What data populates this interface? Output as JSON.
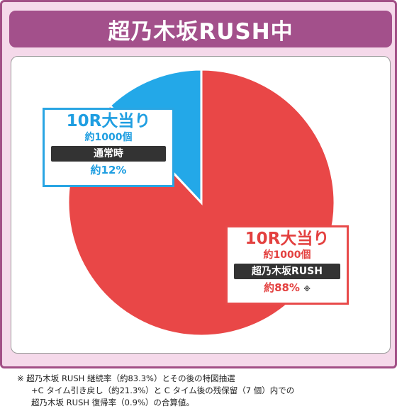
{
  "header": {
    "title": "超乃木坂RUSH中"
  },
  "chart_data": {
    "type": "pie",
    "title": "超乃木坂RUSH中",
    "slices": [
      {
        "title": "10R大当り",
        "count": "約1000個",
        "mode": "超乃木坂RUSH",
        "percent_label": "約88%",
        "mark": "※",
        "value": 88,
        "color": "#e94747"
      },
      {
        "title": "10R大当り",
        "count": "約1000個",
        "mode": "通常時",
        "percent_label": "約12%",
        "mark": "",
        "value": 12,
        "color": "#23a8e8"
      }
    ]
  },
  "footnote": {
    "lines": [
      "※ 超乃木坂 RUSH 継続率（約83.3%）とその後の特図抽選",
      "+C タイム引き戻し（約21.3%）と C タイム後の残保留（7 個）内での",
      "超乃木坂 RUSH 復帰率（0.9%）の合算値。"
    ]
  }
}
